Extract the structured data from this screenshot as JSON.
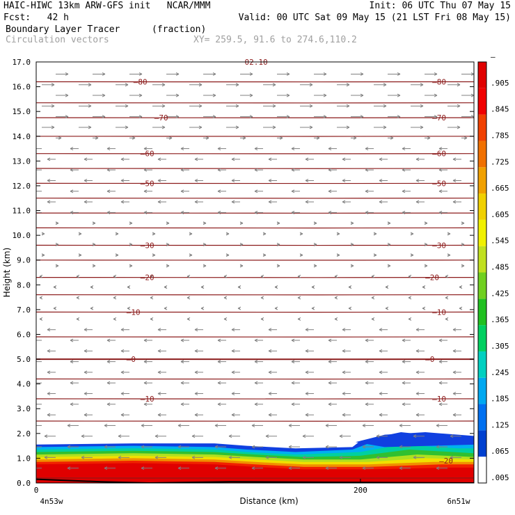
{
  "header": {
    "line1_left": "HAIC-HIWC 13km ARW-GFS init   NCAR/MMM",
    "line1_right": "Init: 06 UTC Thu 07 May 15",
    "line2_left": "Fcst:   42 h",
    "line2_right": "Valid: 00 UTC Sat 09 May 15 (21 LST Fri 08 May 15)",
    "line3_field": "Boundary Layer Tracer",
    "line3_units": "(fraction)",
    "line4_field": "Circulation vectors",
    "line4_xy": "XY= 259.5, 91.6 to 274.6,110.2"
  },
  "colors": {
    "contour": "#8b1a1a",
    "vector": "#808080",
    "colorbar": [
      "#ffffff",
      "#0040d0",
      "#0070f0",
      "#00a8f0",
      "#00d0c0",
      "#00d060",
      "#20c020",
      "#70d020",
      "#c0e020",
      "#f0f000",
      "#f0d000",
      "#f0a000",
      "#f07000",
      "#f04000",
      "#f00000",
      "#e00000"
    ]
  },
  "chart_data": {
    "type": "cross-section",
    "xlabel": "Distance (km)",
    "ylabel": "Height (km)",
    "xlim": [
      0,
      270
    ],
    "ylim": [
      0.0,
      17.0
    ],
    "x_ticks": [
      "0",
      "200"
    ],
    "x_end_labels": [
      "4n53w",
      "6n51w"
    ],
    "y_ticks": [
      "0.0",
      "1.0",
      "2.0",
      "3.0",
      "4.0",
      "5.0",
      "6.0",
      "7.0",
      "8.0",
      "9.0",
      "10.0",
      "11.0",
      "12.0",
      "13.0",
      "14.0",
      "15.0",
      "16.0",
      "17.0"
    ],
    "colorbar_labels": [
      ".005",
      ".065",
      ".125",
      ".185",
      ".245",
      ".305",
      ".365",
      ".425",
      ".485",
      ".545",
      ".605",
      ".665",
      ".725",
      ".785",
      ".845",
      ".905",
      "–"
    ],
    "contour_heights_km": [
      0.2,
      2.5,
      3.4,
      4.2,
      5.0,
      5.9,
      6.9,
      7.6,
      8.3,
      9.0,
      9.6,
      10.3,
      10.9,
      11.5,
      12.1,
      12.7,
      13.3,
      14.0,
      14.75,
      15.35,
      16.2
    ],
    "contour_labels": [
      {
        "text": "80",
        "x": 70,
        "y": 16.2
      },
      {
        "text": "80",
        "x": 285,
        "y": 16.2
      },
      {
        "text": "70",
        "x": 85,
        "y": 14.75
      },
      {
        "text": "70",
        "x": 285,
        "y": 14.75
      },
      {
        "text": "60",
        "x": 75,
        "y": 13.3
      },
      {
        "text": "60",
        "x": 285,
        "y": 13.3
      },
      {
        "text": "50",
        "x": 75,
        "y": 12.1
      },
      {
        "text": "50",
        "x": 285,
        "y": 12.1
      },
      {
        "text": "30",
        "x": 75,
        "y": 9.6
      },
      {
        "text": "30",
        "x": 285,
        "y": 9.6
      },
      {
        "text": "20",
        "x": 75,
        "y": 8.3
      },
      {
        "text": "20",
        "x": 280,
        "y": 8.3
      },
      {
        "text": "10",
        "x": 65,
        "y": 6.9
      },
      {
        "text": "10",
        "x": 285,
        "y": 6.9
      },
      {
        "text": "0",
        "x": 65,
        "y": 5.0
      },
      {
        "text": "0",
        "x": 280,
        "y": 5.0
      },
      {
        "text": "10",
        "x": 75,
        "y": 3.4
      },
      {
        "text": "10",
        "x": 285,
        "y": 3.4
      },
      {
        "text": "20",
        "x": 290,
        "y": 0.9
      },
      {
        "text": "02.10",
        "x": 150,
        "y": 17.0
      }
    ]
  }
}
